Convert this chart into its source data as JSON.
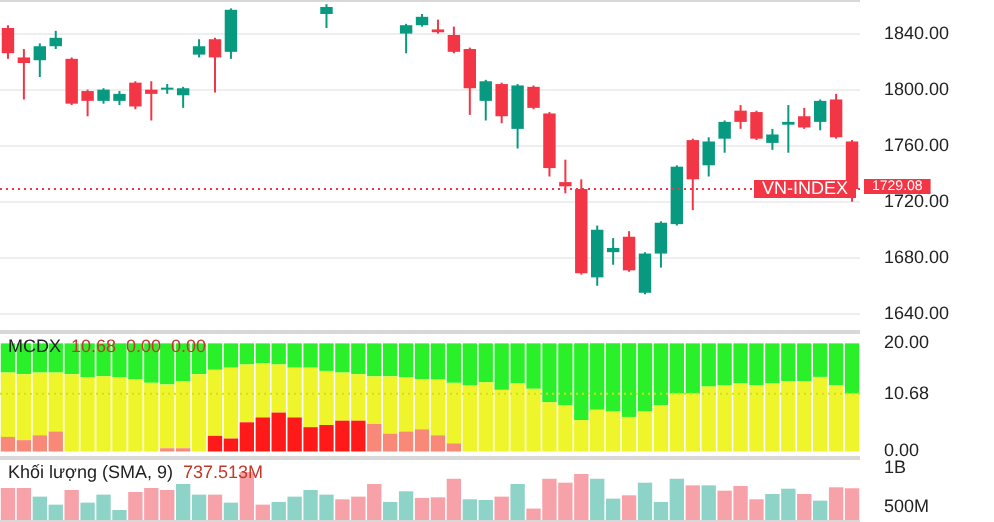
{
  "chart_data": [
    {
      "type": "candlestick",
      "categories": [
        null,
        null,
        null,
        null,
        null,
        null,
        null,
        null,
        null,
        null,
        null,
        null,
        null,
        null,
        null,
        null,
        null,
        null,
        null,
        null,
        null,
        null,
        null,
        null,
        null,
        null,
        null,
        null,
        null,
        null,
        null,
        null,
        null,
        null,
        null,
        null,
        null,
        null,
        null,
        null,
        null,
        null,
        null,
        null,
        null,
        null,
        null,
        null,
        null,
        null,
        null,
        null,
        null,
        null
      ],
      "ohlc": [
        [
          1844,
          1846,
          1822,
          1826
        ],
        [
          1823,
          1829,
          1793,
          1819
        ],
        [
          1821,
          1833,
          1809,
          1831
        ],
        [
          1831,
          1842,
          1829,
          1837
        ],
        [
          1822,
          1823,
          1789,
          1790
        ],
        [
          1799,
          1800,
          1781,
          1792
        ],
        [
          1792,
          1801,
          1790,
          1800
        ],
        [
          1792,
          1799,
          1789,
          1797
        ],
        [
          1805,
          1806,
          1786,
          1788
        ],
        [
          1800,
          1806,
          1778,
          1797
        ],
        [
          1800,
          1804,
          1797,
          1801
        ],
        [
          1796,
          1802,
          1787,
          1801
        ],
        [
          1825,
          1836,
          1823,
          1831
        ],
        [
          1836,
          1837,
          1798,
          1823
        ],
        [
          1827,
          1858,
          1822,
          1857
        ],
        null,
        null,
        null,
        null,
        null,
        [
          1854,
          1861,
          1844,
          1859
        ],
        null,
        null,
        null,
        null,
        [
          1840,
          1847,
          1826,
          1846
        ],
        [
          1846,
          1854,
          1845,
          1852
        ],
        [
          1843,
          1850,
          1840,
          1841
        ],
        [
          1839,
          1845,
          1826,
          1827
        ],
        [
          1829,
          1830,
          1782,
          1801
        ],
        [
          1792,
          1807,
          1778,
          1806
        ],
        [
          1804,
          1805,
          1776,
          1781
        ],
        [
          1772,
          1804,
          1758,
          1803
        ],
        [
          1802,
          1803,
          1786,
          1787
        ],
        [
          1783,
          1784,
          1738,
          1744
        ],
        [
          1734,
          1750,
          1726,
          1731
        ],
        [
          1729,
          1736,
          1668,
          1669
        ],
        [
          1666,
          1703,
          1660,
          1700
        ],
        [
          1684,
          1694,
          1675,
          1687
        ],
        [
          1695,
          1699,
          1670,
          1671
        ],
        [
          1655,
          1684,
          1654,
          1683
        ],
        [
          1683,
          1706,
          1673,
          1705
        ],
        [
          1704,
          1746,
          1703,
          1745
        ],
        [
          1764,
          1765,
          1714,
          1736
        ],
        [
          1746,
          1766,
          1738,
          1763
        ],
        [
          1765,
          1778,
          1755,
          1777
        ],
        [
          1785,
          1789,
          1772,
          1777
        ],
        [
          1784,
          1785,
          1764,
          1765
        ],
        [
          1762,
          1772,
          1757,
          1768
        ],
        [
          1775,
          1789,
          1755,
          1777
        ],
        [
          1781,
          1787,
          1772,
          1773
        ],
        [
          1777,
          1793,
          1771,
          1792
        ],
        [
          1793,
          1797,
          1765,
          1766
        ],
        [
          1763,
          1764,
          1720,
          1729.08
        ]
      ],
      "colors": [
        "#f23645",
        "#f23645",
        "#089981",
        "#089981",
        "#f23645",
        "#f23645",
        "#089981",
        "#089981",
        "#f23645",
        "#f23645",
        "#089981",
        "#089981",
        "#089981",
        "#f23645",
        "#089981",
        null,
        null,
        null,
        null,
        null,
        "#089981",
        null,
        null,
        null,
        null,
        "#089981",
        "#089981",
        "#f23645",
        "#f23645",
        "#f23645",
        "#089981",
        "#f23645",
        "#089981",
        "#f23645",
        "#f23645",
        "#f23645",
        "#f23645",
        "#089981",
        "#089981",
        "#f23645",
        "#089981",
        "#089981",
        "#089981",
        "#f23645",
        "#089981",
        "#089981",
        "#f23645",
        "#f23645",
        "#089981",
        "#089981",
        "#f23645",
        "#089981",
        "#f23645",
        "#f23645"
      ],
      "ylim": [
        1627,
        1864
      ],
      "yticks": [
        {
          "value": 1640,
          "label": "1640.00"
        },
        {
          "value": 1680,
          "label": "1680.00"
        },
        {
          "value": 1720,
          "label": "1720.00"
        },
        {
          "value": 1760,
          "label": "1760.00"
        },
        {
          "value": 1800,
          "label": "1800.00"
        },
        {
          "value": 1840,
          "label": "1840.00"
        }
      ],
      "grid": "y",
      "tick_labels": "y",
      "ref_lines": [
        {
          "axis": "y",
          "value": 1729.08,
          "label": "VN-INDEX",
          "color": "#f23645",
          "line_style": "dotted"
        }
      ],
      "annotations": [
        "1729.08"
      ]
    },
    {
      "type": "bar",
      "stacked": true,
      "categories": [
        null,
        null,
        null,
        null,
        null,
        null,
        null,
        null,
        null,
        null,
        null,
        null,
        null,
        null,
        null,
        null,
        null,
        null,
        null,
        null,
        null,
        null,
        null,
        null,
        null,
        null,
        null,
        null,
        null,
        null,
        null,
        null,
        null,
        null,
        null,
        null,
        null,
        null,
        null,
        null,
        null,
        null,
        null,
        null,
        null,
        null,
        null,
        null,
        null,
        null,
        null,
        null,
        null,
        null
      ],
      "series": [
        {
          "colors": [
            "#f88878",
            "#f88878",
            "#f88878",
            "#f88878",
            "#f88878",
            "#f88878",
            "#f88878",
            "#f88878",
            "#f88878",
            "#f88878",
            "#f88878",
            "#f88878",
            "#f88878",
            "#ff1a1a",
            "#ff1a1a",
            "#ff1a1a",
            "#ff1a1a",
            "#ff1a1a",
            "#ff1a1a",
            "#ff1a1a",
            "#ff1a1a",
            "#ff1a1a",
            "#ff1a1a",
            "#f88878",
            "#f88878",
            "#f88878",
            "#f88878",
            "#f88878",
            "#f88878",
            "#f88878",
            "#f88878",
            "#f88878",
            "#f88878",
            "#f88878",
            "#f88878",
            "#f88878",
            "#f88878",
            "#f88878",
            "#f88878",
            "#f88878",
            "#f88878",
            "#f88878",
            "#f88878",
            "#f88878",
            "#f88878",
            "#f88878",
            "#f88878",
            "#f88878",
            "#f88878",
            "#f88878",
            "#f88878",
            "#f88878",
            "#f88878",
            "#f88878"
          ],
          "values": [
            2.7,
            2.1,
            3.0,
            3.7,
            0,
            0,
            0,
            0,
            0,
            0,
            0.6,
            0.6,
            0,
            2.9,
            2.4,
            5.4,
            6.3,
            7.2,
            6.3,
            4.5,
            4.9,
            5.7,
            5.7,
            5.1,
            3.3,
            3.7,
            4.1,
            3.0,
            1.5,
            0,
            0,
            0,
            0,
            0,
            0,
            0,
            0,
            0,
            0,
            0,
            0,
            0,
            0,
            0,
            0,
            0,
            0,
            0,
            0,
            0,
            0,
            0,
            0,
            0
          ]
        },
        {
          "color": "#eef52a",
          "values": [
            11.9,
            12.2,
            11.6,
            10.9,
            14.3,
            13.7,
            13.9,
            13.7,
            13.3,
            12.7,
            11.8,
            12.4,
            14.3,
            12.2,
            13.1,
            10.7,
            10.0,
            8.9,
            9.2,
            11.0,
            10.0,
            8.9,
            8.6,
            8.8,
            10.6,
            10.0,
            9.3,
            10.3,
            11.2,
            12.2,
            12.8,
            11.4,
            12.6,
            11.6,
            9.1,
            8.6,
            5.8,
            7.7,
            7.4,
            6.4,
            7.4,
            8.6,
            10.7,
            10.7,
            12.0,
            12.3,
            12.6,
            12.3,
            12.6,
            13.0,
            13.0,
            13.8,
            12.3,
            10.68
          ]
        },
        {
          "color": "#2af02a",
          "values": [
            5.4,
            5.7,
            5.4,
            5.4,
            5.7,
            6.3,
            6.1,
            6.3,
            6.7,
            7.3,
            7.6,
            7.0,
            5.7,
            4.9,
            4.5,
            3.9,
            3.7,
            3.9,
            4.5,
            4.5,
            5.1,
            5.4,
            5.7,
            6.1,
            6.1,
            6.3,
            6.6,
            6.7,
            7.3,
            7.8,
            7.2,
            8.6,
            7.4,
            8.4,
            10.9,
            11.4,
            14.2,
            12.3,
            12.6,
            13.6,
            12.6,
            11.4,
            9.3,
            9.3,
            8.0,
            7.7,
            7.4,
            7.7,
            7.4,
            7.0,
            7.0,
            6.2,
            7.7,
            9.32
          ]
        }
      ],
      "ylim": [
        -1.2,
        22.1
      ],
      "yticks": [
        {
          "value": 0,
          "label": "0.00"
        },
        {
          "value": 10.68,
          "label": "10.68"
        },
        {
          "value": 20,
          "label": "20.00"
        }
      ],
      "tick_labels": "y",
      "annotations": [
        "MCDX",
        "10.68",
        "0.00",
        "0.00"
      ],
      "ref_lines": [
        {
          "axis": "y",
          "value": 10.68,
          "color": "#d8dc20",
          "line_style": "dotted"
        }
      ]
    },
    {
      "type": "bar",
      "categories": [
        null,
        null,
        null,
        null,
        null,
        null,
        null,
        null,
        null,
        null,
        null,
        null,
        null,
        null,
        null,
        null,
        null,
        null,
        null,
        null,
        null,
        null,
        null,
        null,
        null,
        null,
        null,
        null,
        null,
        null,
        null,
        null,
        null,
        null,
        null,
        null,
        null,
        null,
        null,
        null,
        null,
        null,
        null,
        null,
        null,
        null,
        null,
        null,
        null,
        null,
        null,
        null,
        null,
        null
      ],
      "values": [
        741000000,
        741000000,
        629000000,
        525000000,
        715000000,
        551000000,
        655000000,
        456000000,
        689000000,
        741000000,
        715000000,
        793000000,
        655000000,
        655000000,
        551000000,
        948000000,
        525000000,
        560000000,
        629000000,
        715000000,
        655000000,
        594000000,
        629000000,
        793000000,
        560000000,
        698000000,
        612000000,
        620000000,
        862000000,
        594000000,
        585000000,
        629000000,
        793000000,
        474000000,
        862000000,
        810000000,
        922000000,
        862000000,
        603000000,
        646000000,
        810000000,
        560000000,
        862000000,
        775000000,
        775000000,
        706000000,
        767000000,
        594000000,
        663000000,
        732000000,
        663000000,
        577000000,
        750000000,
        737513000
      ],
      "colors": [
        "#f7a1a8",
        "#f7a1a8",
        "#8ed3c7",
        "#8ed3c7",
        "#f7a1a8",
        "#8ed3c7",
        "#8ed3c7",
        "#8ed3c7",
        "#f7a1a8",
        "#f7a1a8",
        "#f7a1a8",
        "#8ed3c7",
        "#8ed3c7",
        "#f7a1a8",
        "#8ed3c7",
        "#f7a1a8",
        "#f7a1a8",
        "#8ed3c7",
        "#8ed3c7",
        "#8ed3c7",
        "#8ed3c7",
        "#f7a1a8",
        "#f7a1a8",
        "#f7a1a8",
        "#8ed3c7",
        "#8ed3c7",
        "#f7a1a8",
        "#f7a1a8",
        "#f7a1a8",
        "#8ed3c7",
        "#8ed3c7",
        "#f7a1a8",
        "#8ed3c7",
        "#f7a1a8",
        "#f7a1a8",
        "#f7a1a8",
        "#f7a1a8",
        "#8ed3c7",
        "#8ed3c7",
        "#f7a1a8",
        "#8ed3c7",
        "#8ed3c7",
        "#8ed3c7",
        "#f7a1a8",
        "#8ed3c7",
        "#f7a1a8",
        "#f7a1a8",
        "#f7a1a8",
        "#8ed3c7",
        "#8ed3c7",
        "#f7a1a8",
        "#8ed3c7",
        "#f7a1a8",
        "#f7a1a8"
      ],
      "ylim": [
        300000000,
        1130000000
      ],
      "yticks": [
        {
          "value": 500000000,
          "label": "500M"
        },
        {
          "value": 1000000000,
          "label": "1B"
        }
      ],
      "tick_labels": "y",
      "annotations": [
        "Khối lượng (SMA, 9)",
        "737.513M"
      ]
    }
  ]
}
